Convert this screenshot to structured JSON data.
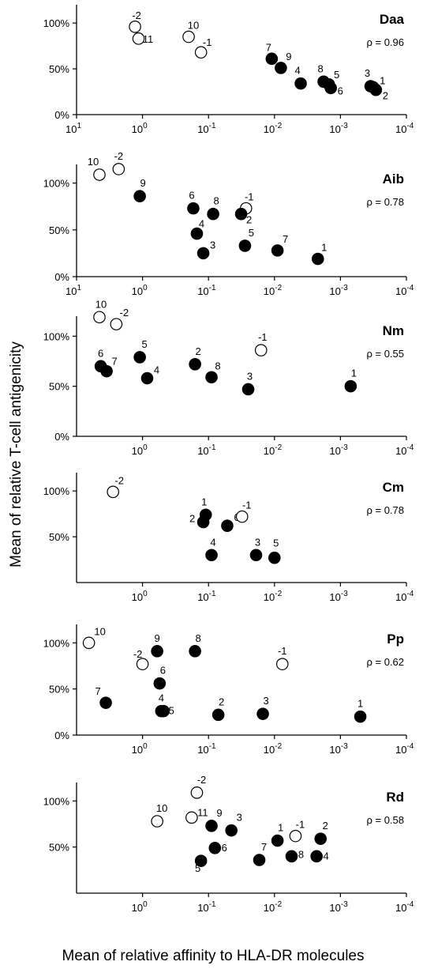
{
  "y_axis_title": "Mean of relative T-cell antigenicity",
  "x_axis_title": "Mean of relative affinity to HLA-DR molecules",
  "colors": {
    "filled": "#000000",
    "open_fill": "#ffffff",
    "stroke": "#000000"
  },
  "chart_data": [
    {
      "type": "scatter",
      "title": "Daa",
      "annotation": "ρ = 0.96",
      "x_scale": "log, reversed",
      "xlim": [
        10,
        0.0001
      ],
      "ylim": [
        0,
        1.2
      ],
      "x_ticks": [
        {
          "base": "10",
          "exp": "1"
        },
        {
          "base": "10",
          "exp": "0"
        },
        {
          "base": "10",
          "exp": "-1"
        },
        {
          "base": "10",
          "exp": "-2"
        },
        {
          "base": "10",
          "exp": "-3"
        },
        {
          "base": "10",
          "exp": "-4"
        }
      ],
      "y_ticks": [
        "0%",
        "50%",
        "100%"
      ],
      "points": [
        {
          "label": "-2",
          "x": 1.3,
          "y": 0.96,
          "filled": false
        },
        {
          "label": "11",
          "x": 1.15,
          "y": 0.83,
          "filled": false
        },
        {
          "label": "10",
          "x": 0.2,
          "y": 0.85,
          "filled": false
        },
        {
          "label": "-1",
          "x": 0.13,
          "y": 0.68,
          "filled": false
        },
        {
          "label": "7",
          "x": 0.011,
          "y": 0.61,
          "filled": true
        },
        {
          "label": "9",
          "x": 0.008,
          "y": 0.51,
          "filled": true
        },
        {
          "label": "4",
          "x": 0.004,
          "y": 0.34,
          "filled": true
        },
        {
          "label": "8",
          "x": 0.0018,
          "y": 0.36,
          "filled": true
        },
        {
          "label": "5",
          "x": 0.0015,
          "y": 0.33,
          "filled": true
        },
        {
          "label": "6",
          "x": 0.0014,
          "y": 0.29,
          "filled": true
        },
        {
          "label": "3",
          "x": 0.00035,
          "y": 0.31,
          "filled": true
        },
        {
          "label": "1",
          "x": 0.00032,
          "y": 0.3,
          "filled": true
        },
        {
          "label": "2",
          "x": 0.00029,
          "y": 0.27,
          "filled": true
        }
      ]
    },
    {
      "type": "scatter",
      "title": "Aib",
      "annotation": "ρ = 0.78",
      "x_scale": "log, reversed",
      "xlim": [
        10,
        0.0001
      ],
      "ylim": [
        0,
        1.2
      ],
      "x_ticks": [
        {
          "base": "10",
          "exp": "1"
        },
        {
          "base": "10",
          "exp": "0"
        },
        {
          "base": "10",
          "exp": "-1"
        },
        {
          "base": "10",
          "exp": "-2"
        },
        {
          "base": "10",
          "exp": "-3"
        },
        {
          "base": "10",
          "exp": "-4"
        }
      ],
      "y_ticks": [
        "0%",
        "50%",
        "100%"
      ],
      "points": [
        {
          "label": "10",
          "x": 4.5,
          "y": 1.09,
          "filled": false
        },
        {
          "label": "-2",
          "x": 2.3,
          "y": 1.15,
          "filled": false
        },
        {
          "label": "9",
          "x": 1.1,
          "y": 0.86,
          "filled": true
        },
        {
          "label": "6",
          "x": 0.17,
          "y": 0.73,
          "filled": true
        },
        {
          "label": "8",
          "x": 0.085,
          "y": 0.67,
          "filled": true
        },
        {
          "label": "-1",
          "x": 0.027,
          "y": 0.73,
          "filled": false
        },
        {
          "label": "2",
          "x": 0.032,
          "y": 0.67,
          "filled": true
        },
        {
          "label": "4",
          "x": 0.15,
          "y": 0.46,
          "filled": true
        },
        {
          "label": "3",
          "x": 0.12,
          "y": 0.25,
          "filled": true
        },
        {
          "label": "5",
          "x": 0.028,
          "y": 0.33,
          "filled": true
        },
        {
          "label": "7",
          "x": 0.009,
          "y": 0.28,
          "filled": true
        },
        {
          "label": "1",
          "x": 0.0022,
          "y": 0.19,
          "filled": true
        }
      ]
    },
    {
      "type": "scatter",
      "title": "Nm",
      "annotation": "ρ = 0.55",
      "x_scale": "log, reversed",
      "xlim": [
        10,
        0.0001
      ],
      "ylim": [
        0,
        1.2
      ],
      "x_ticks": [
        {
          "base": "10",
          "exp": "0"
        },
        {
          "base": "10",
          "exp": "-1"
        },
        {
          "base": "10",
          "exp": "-2"
        },
        {
          "base": "10",
          "exp": "-3"
        },
        {
          "base": "10",
          "exp": "-4"
        }
      ],
      "y_ticks": [
        "0%",
        "50%",
        "100%"
      ],
      "points": [
        {
          "label": "10",
          "x": 4.5,
          "y": 1.19,
          "filled": false
        },
        {
          "label": "-2",
          "x": 2.5,
          "y": 1.12,
          "filled": false
        },
        {
          "label": "6",
          "x": 4.3,
          "y": 0.7,
          "filled": true
        },
        {
          "label": "7",
          "x": 3.5,
          "y": 0.65,
          "filled": true
        },
        {
          "label": "5",
          "x": 1.1,
          "y": 0.79,
          "filled": true
        },
        {
          "label": "4",
          "x": 0.85,
          "y": 0.58,
          "filled": true
        },
        {
          "label": "2",
          "x": 0.16,
          "y": 0.72,
          "filled": true
        },
        {
          "label": "8",
          "x": 0.09,
          "y": 0.59,
          "filled": true
        },
        {
          "label": "-1",
          "x": 0.016,
          "y": 0.86,
          "filled": false
        },
        {
          "label": "3",
          "x": 0.025,
          "y": 0.47,
          "filled": true
        },
        {
          "label": "1",
          "x": 0.0007,
          "y": 0.5,
          "filled": true
        }
      ]
    },
    {
      "type": "scatter",
      "title": "Cm",
      "annotation": "ρ = 0.78",
      "x_scale": "log, reversed",
      "xlim": [
        10,
        0.0001
      ],
      "ylim": [
        0,
        1.2
      ],
      "x_ticks": [
        {
          "base": "10",
          "exp": "0"
        },
        {
          "base": "10",
          "exp": "-1"
        },
        {
          "base": "10",
          "exp": "-2"
        },
        {
          "base": "10",
          "exp": "-3"
        },
        {
          "base": "10",
          "exp": "-4"
        }
      ],
      "y_ticks": [
        "50%",
        "100%"
      ],
      "points": [
        {
          "label": "-2",
          "x": 2.8,
          "y": 0.99,
          "filled": false
        },
        {
          "label": "1",
          "x": 0.11,
          "y": 0.74,
          "filled": true
        },
        {
          "label": "2",
          "x": 0.12,
          "y": 0.66,
          "filled": true
        },
        {
          "label": "6",
          "x": 0.052,
          "y": 0.62,
          "filled": true
        },
        {
          "label": "-1",
          "x": 0.031,
          "y": 0.72,
          "filled": false
        },
        {
          "label": "4",
          "x": 0.09,
          "y": 0.3,
          "filled": true
        },
        {
          "label": "3",
          "x": 0.019,
          "y": 0.3,
          "filled": true
        },
        {
          "label": "5",
          "x": 0.01,
          "y": 0.27,
          "filled": true
        }
      ]
    },
    {
      "type": "scatter",
      "title": "Pp",
      "annotation": "ρ = 0.62",
      "x_scale": "log, reversed",
      "xlim": [
        10,
        0.0001
      ],
      "ylim": [
        0,
        1.2
      ],
      "x_ticks": [
        {
          "base": "10",
          "exp": "0"
        },
        {
          "base": "10",
          "exp": "-1"
        },
        {
          "base": "10",
          "exp": "-2"
        },
        {
          "base": "10",
          "exp": "-3"
        },
        {
          "base": "10",
          "exp": "-4"
        }
      ],
      "y_ticks": [
        "0%",
        "50%",
        "100%"
      ],
      "points": [
        {
          "label": "10",
          "x": 6.5,
          "y": 1.0,
          "filled": false
        },
        {
          "label": "-2",
          "x": 1.0,
          "y": 0.77,
          "filled": false
        },
        {
          "label": "9",
          "x": 0.6,
          "y": 0.91,
          "filled": true
        },
        {
          "label": "8",
          "x": 0.16,
          "y": 0.91,
          "filled": true
        },
        {
          "label": "6",
          "x": 0.55,
          "y": 0.56,
          "filled": true
        },
        {
          "label": "7",
          "x": 3.6,
          "y": 0.35,
          "filled": true
        },
        {
          "label": "4",
          "x": 0.52,
          "y": 0.26,
          "filled": true
        },
        {
          "label": "5",
          "x": 0.48,
          "y": 0.26,
          "filled": true
        },
        {
          "label": "2",
          "x": 0.071,
          "y": 0.22,
          "filled": true
        },
        {
          "label": "3",
          "x": 0.015,
          "y": 0.23,
          "filled": true
        },
        {
          "label": "-1",
          "x": 0.0076,
          "y": 0.77,
          "filled": false
        },
        {
          "label": "1",
          "x": 0.0005,
          "y": 0.2,
          "filled": true
        }
      ]
    },
    {
      "type": "scatter",
      "title": "Rd",
      "annotation": "ρ = 0.58",
      "x_scale": "log, reversed",
      "xlim": [
        10,
        0.0001
      ],
      "ylim": [
        0,
        1.2
      ],
      "x_ticks": [
        {
          "base": "10",
          "exp": "0"
        },
        {
          "base": "10",
          "exp": "-1"
        },
        {
          "base": "10",
          "exp": "-2"
        },
        {
          "base": "10",
          "exp": "-3"
        },
        {
          "base": "10",
          "exp": "-4"
        }
      ],
      "y_ticks": [
        "50%",
        "100%"
      ],
      "points": [
        {
          "label": "10",
          "x": 0.6,
          "y": 0.78,
          "filled": false
        },
        {
          "label": "-2",
          "x": 0.15,
          "y": 1.09,
          "filled": false
        },
        {
          "label": "11",
          "x": 0.18,
          "y": 0.82,
          "filled": false
        },
        {
          "label": "9",
          "x": 0.09,
          "y": 0.73,
          "filled": true
        },
        {
          "label": "3",
          "x": 0.045,
          "y": 0.68,
          "filled": true
        },
        {
          "label": "6",
          "x": 0.08,
          "y": 0.49,
          "filled": true
        },
        {
          "label": "5",
          "x": 0.13,
          "y": 0.35,
          "filled": true
        },
        {
          "label": "7",
          "x": 0.017,
          "y": 0.36,
          "filled": true
        },
        {
          "label": "1",
          "x": 0.009,
          "y": 0.57,
          "filled": true
        },
        {
          "label": "8",
          "x": 0.0055,
          "y": 0.4,
          "filled": true
        },
        {
          "label": "-1",
          "x": 0.0048,
          "y": 0.62,
          "filled": false
        },
        {
          "label": "2",
          "x": 0.002,
          "y": 0.59,
          "filled": true
        },
        {
          "label": "4",
          "x": 0.0023,
          "y": 0.4,
          "filled": true
        }
      ]
    }
  ]
}
